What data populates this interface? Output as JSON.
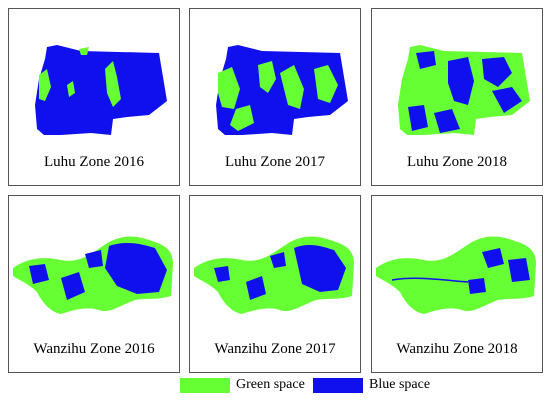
{
  "colors": {
    "green": "#66ff33",
    "blue": "#1010ee"
  },
  "panels": [
    {
      "caption": "Luhu Zone 2016",
      "zone": "luhu",
      "green_share": 0.06
    },
    {
      "caption": "Luhu Zone 2017",
      "zone": "luhu",
      "green_share": 0.22
    },
    {
      "caption": "Luhu Zone 2018",
      "zone": "luhu",
      "green_share": 0.62
    },
    {
      "caption": "Wanzihu Zone 2016",
      "zone": "wanzihu",
      "green_share": 0.45
    },
    {
      "caption": "Wanzihu Zone 2017",
      "zone": "wanzihu",
      "green_share": 0.5
    },
    {
      "caption": "Wanzihu Zone 2018",
      "zone": "wanzihu",
      "green_share": 0.75
    }
  ],
  "legend": [
    {
      "label": "Green space",
      "color": "#66ff33"
    },
    {
      "label": "Blue space",
      "color": "#1010ee"
    }
  ]
}
